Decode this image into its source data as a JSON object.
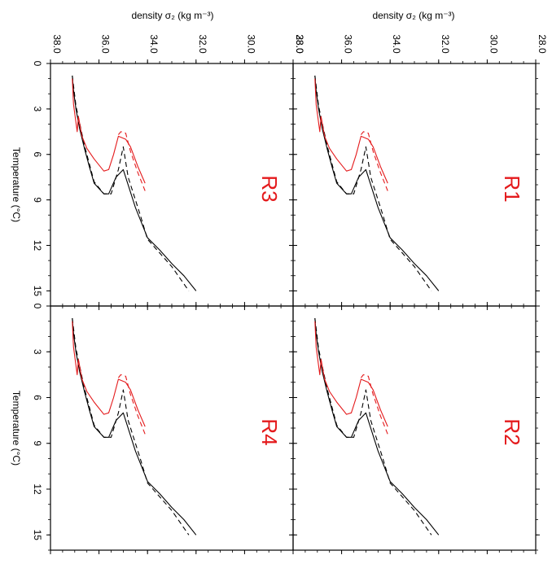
{
  "colors": {
    "red": "#e41a1c",
    "black": "#000000"
  },
  "top_labels": {
    "left": "density σ₂ (kg m⁻³)",
    "right": "density σ₂ (kg m⁻³)"
  },
  "side_labels": {
    "top": "Temperature (°C)",
    "bottom": "Temperature (°C)"
  },
  "chart_data": [
    {
      "type": "line",
      "panel_label": "R3",
      "xlabel": "density σ₂ (kg m⁻³)",
      "ylabel": "Temperature (°C)",
      "xlim": [
        38.0,
        28.0
      ],
      "ylim": [
        0,
        16
      ],
      "xticks": [
        "38.0",
        "36.0",
        "34.0",
        "32.0",
        "30.0",
        "28.0"
      ],
      "yticks": [
        "0",
        "3",
        "6",
        "9",
        "12",
        "15"
      ],
      "series": [
        {
          "color": "#000000",
          "dash": "solid",
          "x": [
            37.1,
            37.05,
            36.95,
            36.8,
            36.6,
            36.4,
            36.2,
            35.8,
            35.6,
            35.3,
            35.0,
            34.5,
            34.0,
            33.5,
            33.0,
            32.5,
            32.0
          ],
          "y": [
            0.8,
            1.8,
            3.0,
            4.3,
            5.6,
            6.8,
            7.9,
            8.6,
            8.6,
            7.5,
            7.0,
            9.5,
            11.5,
            12.3,
            13.2,
            14.0,
            15.0
          ]
        },
        {
          "color": "#000000",
          "dash": "dashed",
          "x": [
            37.1,
            36.95,
            36.6,
            36.2,
            35.8,
            35.5,
            35.2,
            35.0,
            34.8,
            34.3,
            34.0,
            33.5,
            33.0,
            32.3
          ],
          "y": [
            0.8,
            2.8,
            5.4,
            7.8,
            8.6,
            8.6,
            7.0,
            5.5,
            7.5,
            10.0,
            11.6,
            12.5,
            13.4,
            15.0
          ]
        },
        {
          "color": "#e41a1c",
          "dash": "solid",
          "x": [
            37.1,
            37.05,
            36.9,
            36.85,
            36.7,
            36.5,
            36.2,
            35.8,
            35.6,
            35.4,
            35.2,
            34.9,
            34.7,
            34.4,
            34.1
          ],
          "y": [
            1.0,
            2.7,
            4.5,
            3.5,
            4.8,
            5.6,
            6.3,
            7.1,
            7.0,
            6.0,
            4.8,
            5.0,
            5.5,
            6.8,
            7.9
          ]
        },
        {
          "color": "#e41a1c",
          "dash": "dashed",
          "x": [
            35.2,
            35.1,
            34.9,
            34.7,
            34.4,
            34.1
          ],
          "y": [
            4.7,
            4.5,
            4.6,
            5.8,
            7.2,
            8.4
          ]
        }
      ]
    },
    {
      "type": "line",
      "panel_label": "R1",
      "xlabel": "density σ₂ (kg m⁻³)",
      "ylabel": "Temperature (°C)",
      "xlim": [
        38.0,
        28.0
      ],
      "ylim": [
        0,
        16
      ],
      "xticks": [
        "38.0",
        "36.0",
        "34.0",
        "32.0",
        "30.0",
        "28.0"
      ],
      "yticks": [
        "0",
        "3",
        "6",
        "9",
        "12",
        "15"
      ],
      "series": [
        {
          "color": "#000000",
          "dash": "solid",
          "x": [
            37.1,
            37.05,
            36.95,
            36.8,
            36.6,
            36.4,
            36.2,
            35.8,
            35.6,
            35.3,
            35.0,
            34.5,
            34.0,
            33.5,
            33.0,
            32.5,
            32.0
          ],
          "y": [
            0.8,
            1.8,
            3.0,
            4.3,
            5.6,
            6.8,
            7.9,
            8.6,
            8.6,
            7.5,
            7.0,
            9.5,
            11.5,
            12.3,
            13.2,
            14.0,
            15.0
          ]
        },
        {
          "color": "#000000",
          "dash": "dashed",
          "x": [
            37.1,
            36.95,
            36.6,
            36.2,
            35.8,
            35.5,
            35.2,
            35.0,
            34.8,
            34.3,
            34.0,
            33.5,
            33.0,
            32.3
          ],
          "y": [
            0.8,
            2.8,
            5.4,
            7.8,
            8.6,
            8.6,
            7.0,
            5.5,
            7.5,
            10.0,
            11.6,
            12.5,
            13.4,
            15.0
          ]
        },
        {
          "color": "#e41a1c",
          "dash": "solid",
          "x": [
            37.1,
            37.05,
            36.9,
            36.85,
            36.7,
            36.5,
            36.2,
            35.8,
            35.6,
            35.4,
            35.2,
            34.9,
            34.7,
            34.4,
            34.1
          ],
          "y": [
            1.0,
            2.7,
            4.5,
            3.5,
            4.8,
            5.6,
            6.3,
            7.1,
            7.0,
            6.0,
            4.8,
            5.0,
            5.5,
            6.8,
            7.9
          ]
        },
        {
          "color": "#e41a1c",
          "dash": "dashed",
          "x": [
            35.2,
            35.1,
            34.9,
            34.7,
            34.4,
            34.1
          ],
          "y": [
            4.7,
            4.5,
            4.6,
            5.8,
            7.2,
            8.4
          ]
        }
      ]
    },
    {
      "type": "line",
      "panel_label": "R4",
      "xlabel": "density σ₂ (kg m⁻³)",
      "ylabel": "Temperature (°C)",
      "xlim": [
        38.0,
        28.0
      ],
      "ylim": [
        0,
        16
      ],
      "xticks": [
        "38.0",
        "36.0",
        "34.0",
        "32.0",
        "30.0",
        "28.0"
      ],
      "yticks": [
        "0",
        "3",
        "6",
        "9",
        "12",
        "15"
      ],
      "series": [
        {
          "color": "#000000",
          "dash": "solid",
          "x": [
            37.1,
            37.05,
            36.95,
            36.8,
            36.6,
            36.4,
            36.2,
            35.8,
            35.6,
            35.3,
            35.0,
            34.5,
            34.0,
            33.5,
            33.0,
            32.5,
            32.0
          ],
          "y": [
            0.8,
            1.8,
            3.0,
            4.3,
            5.6,
            6.8,
            7.9,
            8.6,
            8.6,
            7.5,
            7.0,
            9.5,
            11.5,
            12.3,
            13.2,
            14.0,
            15.0
          ]
        },
        {
          "color": "#000000",
          "dash": "dashed",
          "x": [
            37.1,
            36.95,
            36.6,
            36.2,
            35.8,
            35.5,
            35.2,
            35.0,
            34.8,
            34.3,
            34.0,
            33.5,
            33.0,
            32.3
          ],
          "y": [
            0.8,
            2.8,
            5.4,
            7.8,
            8.6,
            8.6,
            7.0,
            5.5,
            7.5,
            10.0,
            11.6,
            12.5,
            13.4,
            15.0
          ]
        },
        {
          "color": "#e41a1c",
          "dash": "solid",
          "x": [
            37.1,
            37.05,
            36.9,
            36.85,
            36.7,
            36.5,
            36.2,
            35.8,
            35.6,
            35.4,
            35.2,
            34.9,
            34.7,
            34.4,
            34.1
          ],
          "y": [
            1.0,
            2.7,
            4.5,
            3.5,
            4.8,
            5.6,
            6.3,
            7.1,
            7.0,
            6.0,
            4.8,
            5.0,
            5.5,
            6.8,
            7.9
          ]
        },
        {
          "color": "#e41a1c",
          "dash": "dashed",
          "x": [
            35.2,
            35.1,
            34.9,
            34.7,
            34.4,
            34.1
          ],
          "y": [
            4.7,
            4.5,
            4.6,
            5.8,
            7.2,
            8.4
          ]
        }
      ]
    },
    {
      "type": "line",
      "panel_label": "R2",
      "xlabel": "density σ₂ (kg m⁻³)",
      "ylabel": "Temperature (°C)",
      "xlim": [
        38.0,
        28.0
      ],
      "ylim": [
        0,
        16
      ],
      "xticks": [
        "38.0",
        "36.0",
        "34.0",
        "32.0",
        "30.0",
        "28.0"
      ],
      "yticks": [
        "0",
        "3",
        "6",
        "9",
        "12",
        "15"
      ],
      "series": [
        {
          "color": "#000000",
          "dash": "solid",
          "x": [
            37.1,
            37.05,
            36.95,
            36.8,
            36.6,
            36.4,
            36.2,
            35.8,
            35.6,
            35.3,
            35.0,
            34.5,
            34.0,
            33.5,
            33.0,
            32.5,
            32.0
          ],
          "y": [
            0.8,
            1.8,
            3.0,
            4.3,
            5.6,
            6.8,
            7.9,
            8.6,
            8.6,
            7.5,
            7.0,
            9.5,
            11.5,
            12.3,
            13.2,
            14.0,
            15.0
          ]
        },
        {
          "color": "#000000",
          "dash": "dashed",
          "x": [
            37.1,
            36.95,
            36.6,
            36.2,
            35.8,
            35.5,
            35.2,
            35.0,
            34.8,
            34.3,
            34.0,
            33.5,
            33.0,
            32.3
          ],
          "y": [
            0.8,
            2.8,
            5.4,
            7.8,
            8.6,
            8.6,
            7.0,
            5.5,
            7.5,
            10.0,
            11.6,
            12.5,
            13.4,
            15.0
          ]
        },
        {
          "color": "#e41a1c",
          "dash": "solid",
          "x": [
            37.1,
            37.05,
            36.9,
            36.85,
            36.7,
            36.5,
            36.2,
            35.8,
            35.6,
            35.4,
            35.2,
            34.9,
            34.7,
            34.4,
            34.1
          ],
          "y": [
            1.0,
            2.7,
            4.5,
            3.5,
            4.8,
            5.6,
            6.3,
            7.1,
            7.0,
            6.0,
            4.8,
            5.0,
            5.5,
            6.8,
            7.9
          ]
        },
        {
          "color": "#e41a1c",
          "dash": "dashed",
          "x": [
            35.2,
            35.1,
            34.9,
            34.7,
            34.4,
            34.1
          ],
          "y": [
            4.7,
            4.5,
            4.6,
            5.8,
            7.2,
            8.4
          ]
        }
      ]
    }
  ]
}
